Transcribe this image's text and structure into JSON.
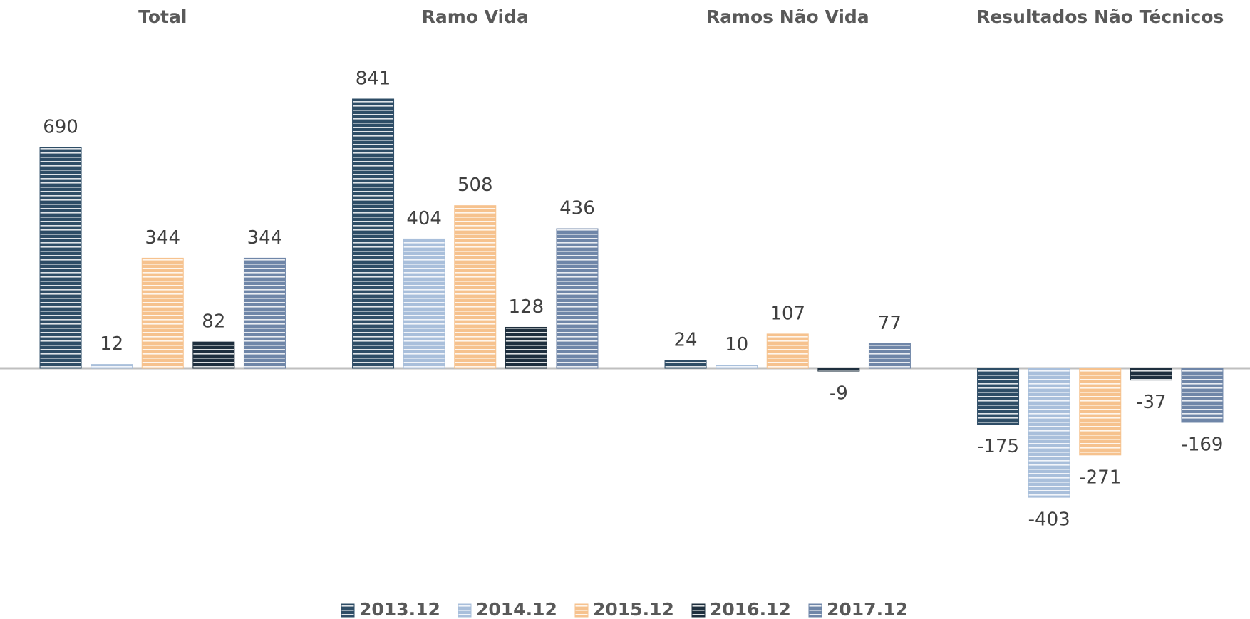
{
  "chart_data": {
    "type": "bar",
    "categories": [
      "Total",
      "Ramo Vida",
      "Ramos Não Vida",
      "Resultados Não Técnicos"
    ],
    "series": [
      {
        "name": "2013.12",
        "color": "#2e4d66",
        "values": [
          690,
          841,
          24,
          -175
        ]
      },
      {
        "name": "2014.12",
        "color": "#a9bfdb",
        "values": [
          12,
          404,
          10,
          -403
        ]
      },
      {
        "name": "2015.12",
        "color": "#f6c28e",
        "values": [
          344,
          508,
          107,
          -271
        ]
      },
      {
        "name": "2016.12",
        "color": "#1e2f3e",
        "values": [
          82,
          128,
          -9,
          -37
        ]
      },
      {
        "name": "2017.12",
        "color": "#6f86a8",
        "values": [
          344,
          436,
          77,
          -169
        ]
      }
    ],
    "legend": "bottom"
  }
}
